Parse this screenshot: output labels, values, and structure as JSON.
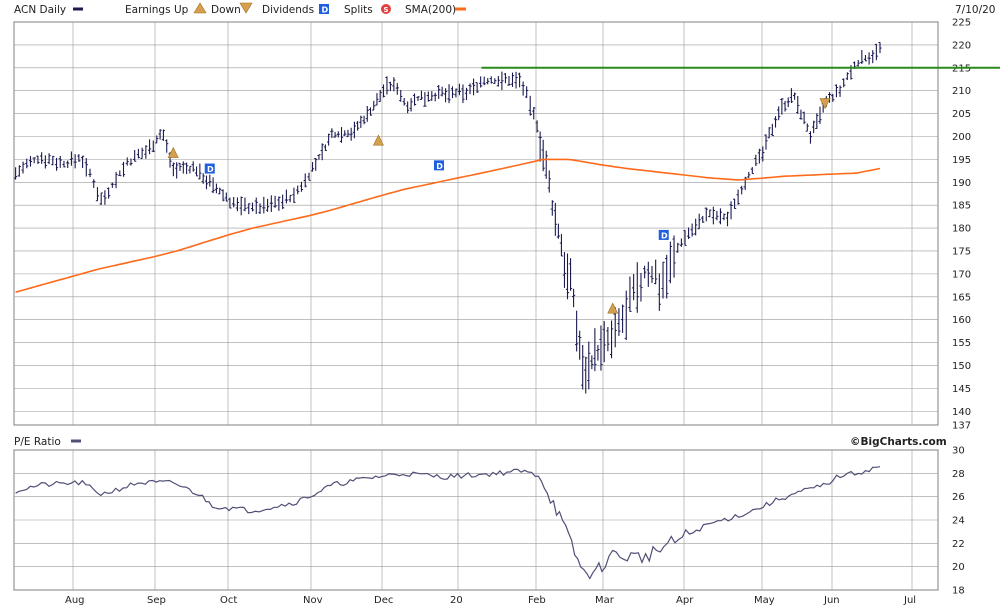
{
  "header": {
    "ticker_label": "ACN Daily",
    "earnings_label": "Earnings",
    "up_label": "Up",
    "down_label": "Down",
    "dividends_label": "Dividends",
    "splits_label": "Splits",
    "sma_label": "SMA(200)",
    "date_label": "7/10/20"
  },
  "pe_panel": {
    "title": "P/E Ratio",
    "credit": "©BigCharts.com"
  },
  "colors": {
    "price_bars": "#1a1a50",
    "sma": "#ff6a1a",
    "resistance_line": "#2a8a1a",
    "grid": "#9a9a9a",
    "pe_line": "#505078",
    "dividend_badge": "#1e5fe0",
    "earnings_marker": "#d4a050"
  },
  "icons": {
    "series_swatch": "dash",
    "earnings_up": "triangle-up-icon",
    "earnings_down": "triangle-down-icon",
    "dividend": "dividend-d-icon",
    "split": "split-s-icon"
  },
  "chart_data": [
    {
      "type": "line",
      "subtype": "ohlc",
      "name": "ACN Daily",
      "x_labels": [
        "Aug",
        "Sep",
        "Oct",
        "Nov",
        "Dec",
        "20",
        "Feb",
        "Mar",
        "Apr",
        "May",
        "Jun",
        "Jul"
      ],
      "y_ticks": [
        137,
        140,
        145,
        150,
        155,
        160,
        165,
        170,
        175,
        180,
        185,
        190,
        195,
        200,
        205,
        210,
        215,
        220,
        225
      ],
      "ylim": [
        137,
        225
      ],
      "grid": true,
      "legend_position": "top",
      "resistance_level": 215,
      "resistance_start_month": 6,
      "price_anchors": [
        [
          0,
          192
        ],
        [
          0.3,
          195.5
        ],
        [
          0.6,
          194
        ],
        [
          0.8,
          195.5
        ],
        [
          0.95,
          190
        ],
        [
          1.05,
          186
        ],
        [
          1.35,
          194
        ],
        [
          1.6,
          197
        ],
        [
          1.8,
          201
        ],
        [
          1.95,
          193
        ],
        [
          2.25,
          193
        ],
        [
          2.5,
          189
        ],
        [
          2.8,
          185
        ],
        [
          3.1,
          184.5
        ],
        [
          3.5,
          187
        ],
        [
          3.8,
          195
        ],
        [
          4.0,
          200.5
        ],
        [
          4.3,
          201
        ],
        [
          4.6,
          207
        ],
        [
          4.75,
          211
        ],
        [
          4.9,
          211
        ],
        [
          5.0,
          207
        ],
        [
          5.3,
          209
        ],
        [
          5.8,
          209.5
        ],
        [
          6.0,
          212
        ],
        [
          6.5,
          212.5
        ],
        [
          6.75,
          201
        ],
        [
          6.9,
          188
        ],
        [
          7.0,
          181
        ],
        [
          7.25,
          165
        ],
        [
          7.4,
          149
        ],
        [
          7.6,
          153
        ],
        [
          7.8,
          155
        ],
        [
          8.0,
          162
        ],
        [
          8.25,
          171
        ],
        [
          8.4,
          168
        ],
        [
          8.7,
          178
        ],
        [
          9.0,
          183
        ],
        [
          9.25,
          182
        ],
        [
          9.5,
          191
        ],
        [
          9.7,
          196
        ],
        [
          9.95,
          206
        ],
        [
          10.15,
          209
        ],
        [
          10.4,
          200
        ],
        [
          10.6,
          207
        ],
        [
          10.8,
          210
        ],
        [
          11.0,
          216
        ],
        [
          11.3,
          219
        ]
      ],
      "sma_200": [
        [
          0,
          166
        ],
        [
          1,
          171
        ],
        [
          2,
          175
        ],
        [
          3,
          180
        ],
        [
          4,
          184
        ],
        [
          5,
          188.5
        ],
        [
          6,
          192
        ],
        [
          6.8,
          195
        ],
        [
          7.2,
          195
        ],
        [
          8,
          193
        ],
        [
          9,
          191
        ],
        [
          9.4,
          190.5
        ],
        [
          10,
          191.3
        ],
        [
          11,
          192
        ],
        [
          11.3,
          193
        ]
      ],
      "earnings_markers": [
        {
          "x": 1.95,
          "y": 196.5,
          "type": "up"
        },
        {
          "x": 4.65,
          "y": 199.2,
          "type": "up"
        },
        {
          "x": 7.82,
          "y": 162.5,
          "type": "up"
        },
        {
          "x": 10.6,
          "y": 207.2,
          "type": "down"
        }
      ],
      "dividend_markers": [
        {
          "x": 2.45,
          "y": 193
        },
        {
          "x": 5.45,
          "y": 193.7
        },
        {
          "x": 8.45,
          "y": 178.5
        }
      ]
    },
    {
      "type": "line",
      "name": "P/E Ratio",
      "x_labels": [
        "Aug",
        "Sep",
        "Oct",
        "Nov",
        "Dec",
        "20",
        "Feb",
        "Mar",
        "Apr",
        "May",
        "Jun",
        "Jul"
      ],
      "y_ticks": [
        18,
        20,
        22,
        24,
        26,
        28,
        30
      ],
      "ylim": [
        18,
        30
      ],
      "grid": true,
      "pe_anchors": [
        [
          0,
          26.5
        ],
        [
          0.3,
          27
        ],
        [
          0.8,
          27.2
        ],
        [
          1.05,
          26.2
        ],
        [
          1.5,
          27.2
        ],
        [
          1.95,
          27.2
        ],
        [
          2.3,
          26.2
        ],
        [
          2.5,
          25.2
        ],
        [
          3.0,
          24.8
        ],
        [
          3.5,
          25.5
        ],
        [
          4.0,
          27
        ],
        [
          4.5,
          27.6
        ],
        [
          5.0,
          28
        ],
        [
          5.5,
          27.7
        ],
        [
          6.0,
          27.9
        ],
        [
          6.5,
          28.2
        ],
        [
          6.75,
          27.8
        ],
        [
          7.0,
          25
        ],
        [
          7.4,
          19.5
        ],
        [
          7.6,
          19.5
        ],
        [
          7.8,
          21
        ],
        [
          8.2,
          20.8
        ],
        [
          8.6,
          22.2
        ],
        [
          9.0,
          23.6
        ],
        [
          9.5,
          24.6
        ],
        [
          9.95,
          25.8
        ],
        [
          10.3,
          26.5
        ],
        [
          10.6,
          27
        ],
        [
          10.8,
          27.8
        ],
        [
          11.0,
          28
        ],
        [
          11.3,
          28.6
        ]
      ]
    }
  ]
}
